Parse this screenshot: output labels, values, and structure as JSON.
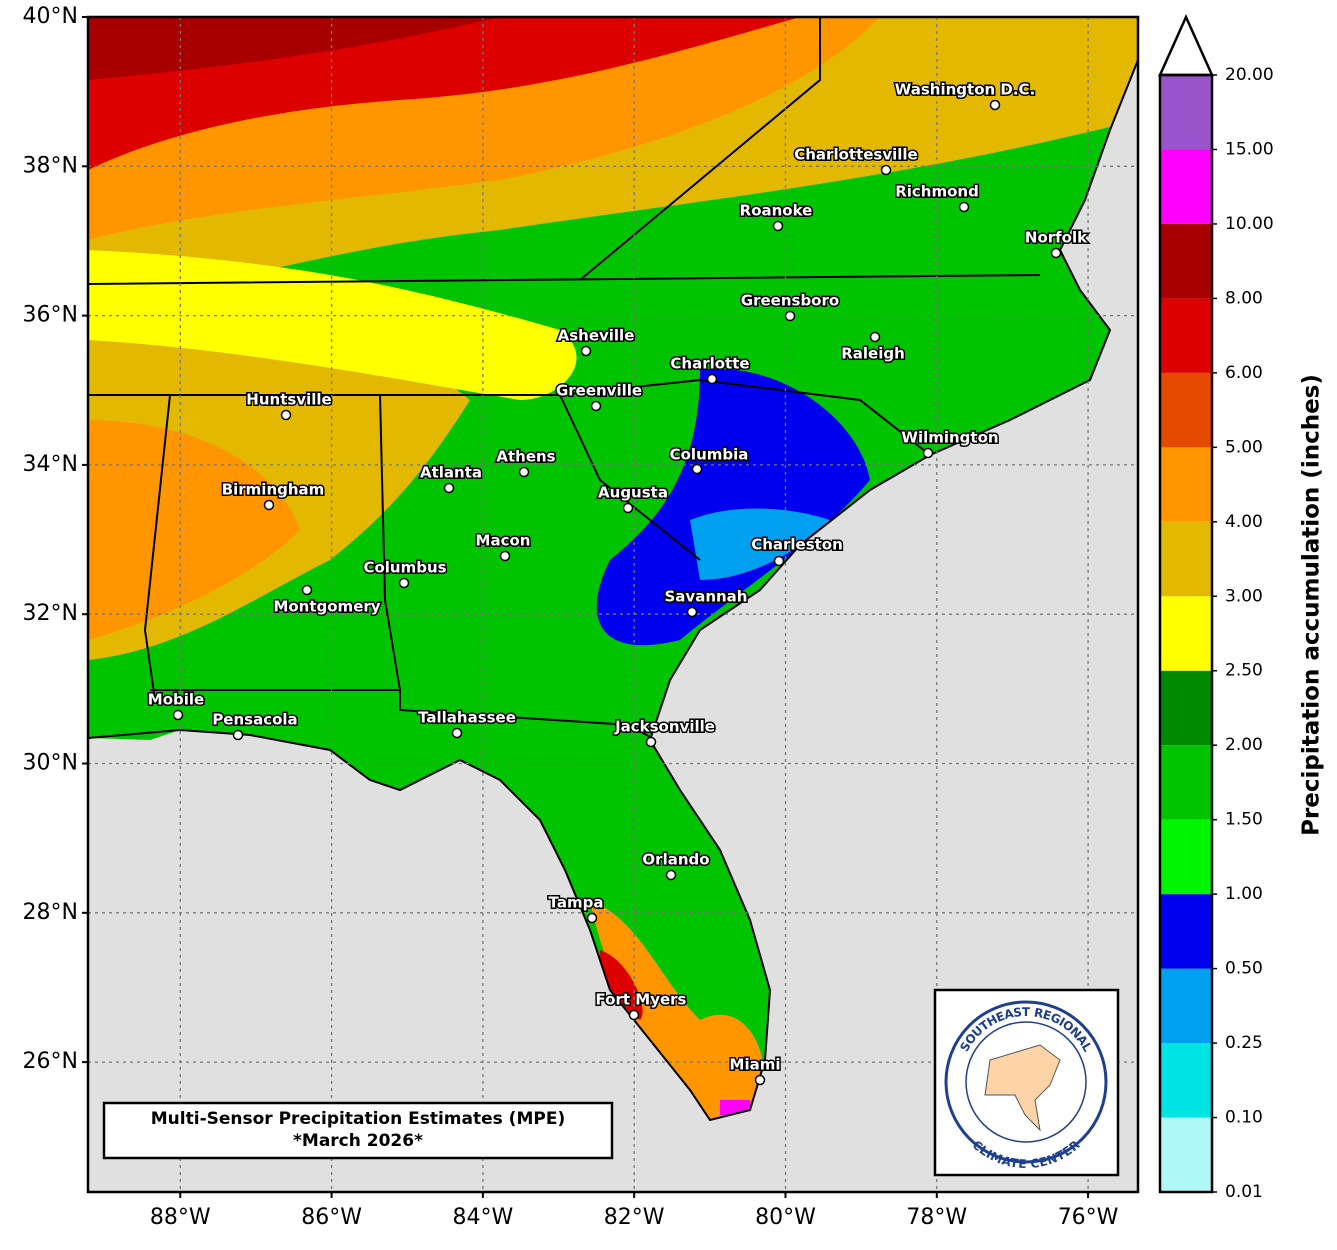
{
  "chart_data": {
    "type": "map",
    "title": "Multi-Sensor Precipitation Estimates (MPE)",
    "subtitle": "*March 2026*",
    "xlim": [
      -89.22,
      -75.34
    ],
    "ylim": [
      24.26,
      40
    ],
    "xticks": [
      {
        "value": -88,
        "label": "88°W"
      },
      {
        "value": -86,
        "label": "86°W"
      },
      {
        "value": -84,
        "label": "84°W"
      },
      {
        "value": -82,
        "label": "82°W"
      },
      {
        "value": -80,
        "label": "80°W"
      },
      {
        "value": -78,
        "label": "78°W"
      },
      {
        "value": -76,
        "label": "76°W"
      }
    ],
    "yticks": [
      {
        "value": 26,
        "label": "26°N"
      },
      {
        "value": 28,
        "label": "28°N"
      },
      {
        "value": 30,
        "label": "30°N"
      },
      {
        "value": 32,
        "label": "32°N"
      },
      {
        "value": 34,
        "label": "34°N"
      },
      {
        "value": 36,
        "label": "36°N"
      },
      {
        "value": 38,
        "label": "38°N"
      },
      {
        "value": 40,
        "label": "40°N"
      }
    ],
    "grid": true,
    "cities": [
      "Washington D.C.",
      "Charlottesville",
      "Richmond",
      "Roanoke",
      "Norfolk",
      "Greensboro",
      "Asheville",
      "Raleigh",
      "Charlotte",
      "Greenville",
      "Huntsville",
      "Wilmington",
      "Athens",
      "Columbia",
      "Atlanta",
      "Birmingham",
      "Augusta",
      "Macon",
      "Charleston",
      "Columbus",
      "Montgomery",
      "Savannah",
      "Mobile",
      "Pensacola",
      "Tallahassee",
      "Jacksonville",
      "Orlando",
      "Tampa",
      "Fort Myers",
      "Miami"
    ],
    "colorbar": {
      "label": "Precipitation accumulation (inches)",
      "ticks": [
        {
          "value": 0.01,
          "label": "0.01"
        },
        {
          "value": 0.1,
          "label": "0.10"
        },
        {
          "value": 0.25,
          "label": "0.25"
        },
        {
          "value": 0.5,
          "label": "0.50"
        },
        {
          "value": 1,
          "label": "1.00"
        },
        {
          "value": 1.5,
          "label": "1.50"
        },
        {
          "value": 2,
          "label": "2.00"
        },
        {
          "value": 2.5,
          "label": "2.50"
        },
        {
          "value": 3,
          "label": "3.00"
        },
        {
          "value": 4,
          "label": "4.00"
        },
        {
          "value": 5,
          "label": "5.00"
        },
        {
          "value": 6,
          "label": "6.00"
        },
        {
          "value": 8,
          "label": "8.00"
        },
        {
          "value": 10,
          "label": "10.00"
        },
        {
          "value": 15,
          "label": "15.00"
        },
        {
          "value": 20,
          "label": "20.00"
        }
      ],
      "colors": [
        "#b0f8f8",
        "#00e3e3",
        "#00a0f0",
        "#0000ee",
        "#00f500",
        "#00c400",
        "#008a00",
        "#ffff00",
        "#e3b800",
        "#ff9600",
        "#e64a00",
        "#dd0000",
        "#a80000",
        "#ff00ff",
        "#9a55cc"
      ]
    },
    "logo": {
      "top": "SOUTHEAST REGIONAL",
      "bottom": "CLIMATE CENTER"
    }
  }
}
